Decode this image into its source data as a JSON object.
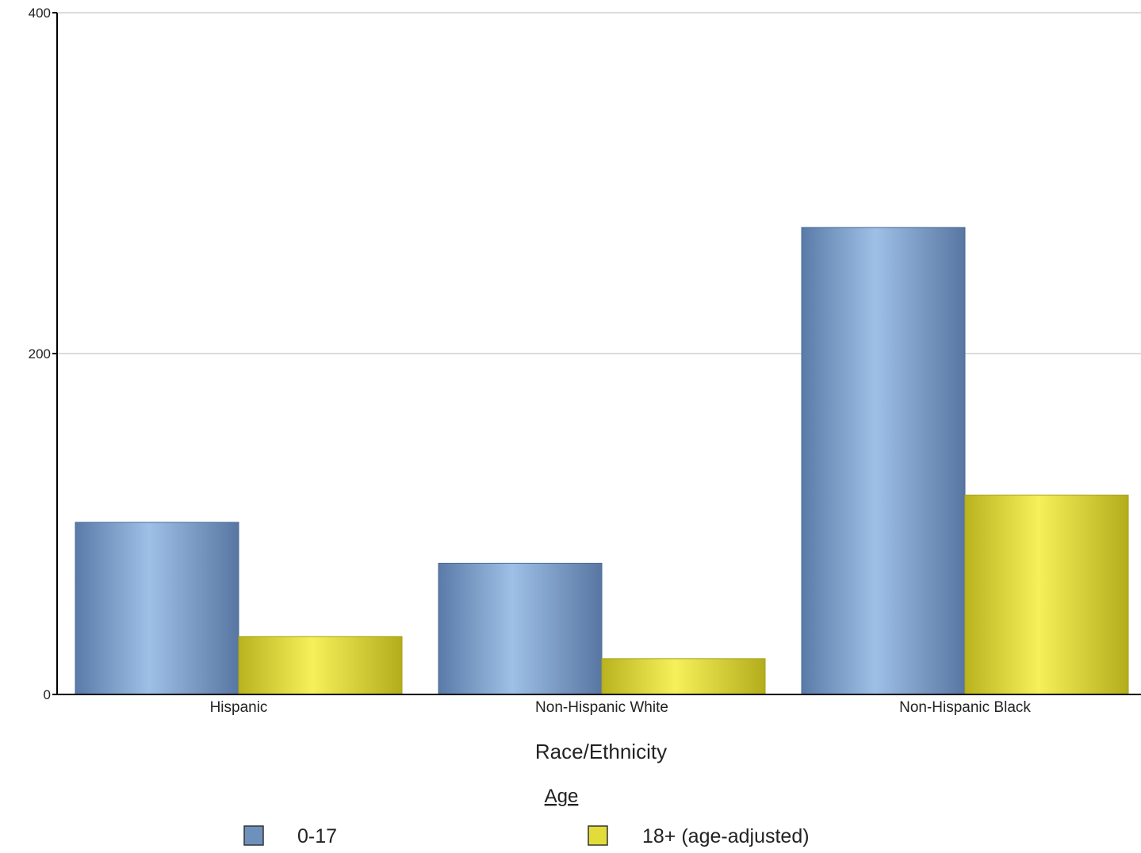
{
  "chart_data": {
    "type": "bar",
    "categories": [
      "Hispanic",
      "Non-Hispanic White",
      "Non-Hispanic Black"
    ],
    "series": [
      {
        "name": "0-17",
        "values": [
          101,
          77,
          274
        ],
        "color": "#6e90bd"
      },
      {
        "name": "18+ (age-adjusted)",
        "values": [
          34,
          21,
          117
        ],
        "color": "#e2dc3a"
      }
    ],
    "xlabel": "Race/Ethnicity",
    "ylabel": "",
    "ylim": [
      0,
      400
    ],
    "yticks": [
      "0",
      "200",
      "400"
    ],
    "grid": true,
    "legend": {
      "title": "Age",
      "placement": "bottom"
    }
  }
}
